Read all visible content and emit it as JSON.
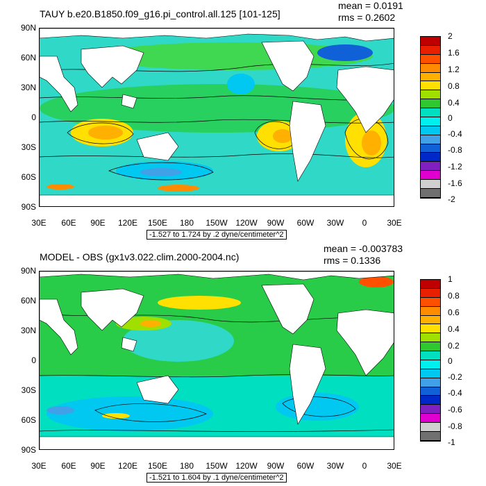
{
  "top": {
    "title": "TAUY b.e20.B1850.f09_g16.pi_control.all.125 [101-125]",
    "mean": "mean = 0.0191",
    "rms": "rms = 0.2602",
    "range_label": "-1.527 to 1.724 by .2 dyne/centimeter^2",
    "colorbar_labels": [
      "2",
      "1.6",
      "1.2",
      "0.8",
      "0.4",
      "0",
      "-0.4",
      "-0.8",
      "-1.2",
      "-1.6",
      "-2"
    ]
  },
  "bottom": {
    "title": "MODEL - OBS (gx1v3.022.clim.2000-2004.nc)",
    "mean": "mean = -0.003783",
    "rms": "rms = 0.1336",
    "range_label": "-1.521 to 1.604 by .1 dyne/centimeter^2",
    "colorbar_labels": [
      "1",
      "0.8",
      "0.6",
      "0.4",
      "0.2",
      "0",
      "-0.2",
      "-0.4",
      "-0.6",
      "-0.8",
      "-1"
    ]
  },
  "lat_labels": [
    "90N",
    "60N",
    "30N",
    "0",
    "30S",
    "60S",
    "90S"
  ],
  "lon_labels": [
    "30E",
    "60E",
    "90E",
    "120E",
    "150E",
    "180",
    "150W",
    "120W",
    "90W",
    "60W",
    "30W",
    "0",
    "30E"
  ],
  "colorbar_colors": [
    "#c00000",
    "#e82000",
    "#ff5000",
    "#ff8c00",
    "#ffb000",
    "#ffe000",
    "#a0e000",
    "#30c830",
    "#00e0c0",
    "#00f0f0",
    "#00c8f0",
    "#40a0e8",
    "#1060d8",
    "#0028c8",
    "#8020c0",
    "#e000d0",
    "#d0d0d0",
    "#707070"
  ]
}
